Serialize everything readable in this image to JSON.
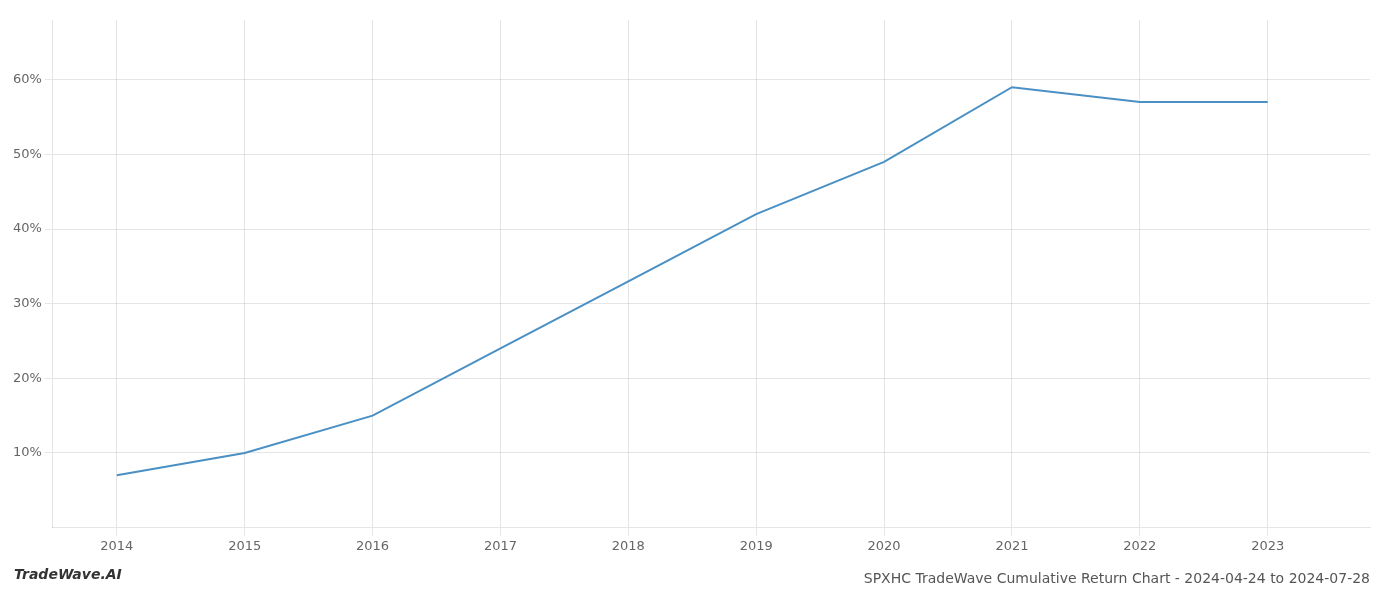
{
  "chart_data": {
    "type": "line",
    "title": "SPXHC TradeWave Cumulative Return Chart - 2024-04-24 to 2024-07-28",
    "annotations": [
      {
        "text": "TradeWave.AI"
      }
    ],
    "x": [
      2014,
      2015,
      2016,
      2017,
      2018,
      2019,
      2020,
      2021,
      2022,
      2023
    ],
    "values": [
      7.0,
      10.0,
      15.0,
      24.0,
      33.0,
      42.0,
      49.0,
      59.0,
      57.0,
      57.0
    ],
    "color": "#4a90c4",
    "xlim": [
      2013.5,
      2023.8
    ],
    "ylim": [
      0,
      68
    ],
    "xticks": [
      2014,
      2015,
      2016,
      2017,
      2018,
      2019,
      2020,
      2021,
      2022,
      2023
    ],
    "yticks": [
      {
        "value": 10,
        "label": "10%"
      },
      {
        "value": 20,
        "label": "20%"
      },
      {
        "value": 30,
        "label": "30%"
      },
      {
        "value": 40,
        "label": "40%"
      },
      {
        "value": 50,
        "label": "50%"
      },
      {
        "value": 60,
        "label": "60%"
      }
    ],
    "grid": true
  }
}
